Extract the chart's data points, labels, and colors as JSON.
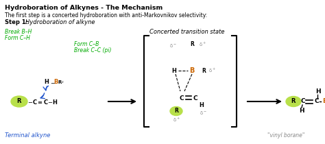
{
  "title": "Hydroboration of Alkynes - The Mechanism",
  "subtitle": "The first step is a concerted hydroboration with anti-Markovnikov selectivity:",
  "step_bold": "Step 1:",
  "step_italic": "Hydroboration of alkyne",
  "bg_color": "#ffffff",
  "text_color": "#000000",
  "green_color": "#00aa00",
  "blue_color": "#2255cc",
  "brown_color": "#cc6600",
  "gray_color": "#888888",
  "label_terminal": "Terminal alkyne",
  "label_vinyl": "\"vinyl borane\"",
  "label_concerted": "Concerted transition state",
  "label_break_bh": "Break B–H",
  "label_form_ch": "Form C–H",
  "label_form_cb": "Form C–B",
  "label_break_cc": "Break C–C (pi)"
}
